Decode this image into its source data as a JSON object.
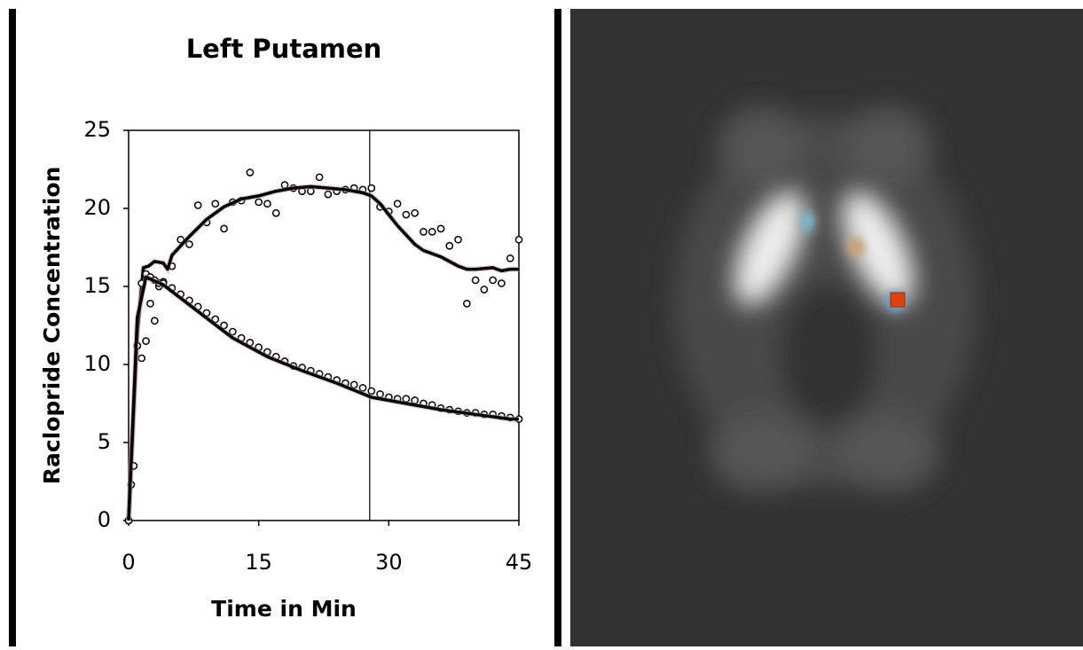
{
  "chart_data": {
    "type": "scatter",
    "title": "Left Putamen",
    "x_label": "Time in Min",
    "y_label": "Raclopride Concentration",
    "xlim": [
      0,
      45
    ],
    "ylim": [
      0,
      25
    ],
    "xticks": [
      0,
      15,
      30,
      45
    ],
    "yticks": [
      0,
      5,
      10,
      15,
      20,
      25
    ],
    "vline": 27.8,
    "series": [
      {
        "mode": "markers",
        "color": "#000000",
        "x": [
          0,
          0.5,
          1,
          1.5,
          2,
          2.5,
          3,
          3.5,
          4,
          5,
          6,
          7,
          8,
          9,
          10,
          11,
          12,
          13,
          14,
          15,
          16,
          17,
          18,
          19,
          20,
          21,
          22,
          23,
          24,
          25,
          26,
          27,
          28,
          29,
          30,
          31,
          32,
          33,
          34,
          35,
          36,
          37,
          38,
          39,
          40,
          41,
          42,
          43,
          44,
          45
        ],
        "values": [
          0,
          3.5,
          11.2,
          10.4,
          11.5,
          13.9,
          12.8,
          15,
          15.3,
          16.3,
          18,
          17.7,
          20.2,
          19.1,
          20.3,
          18.7,
          20.4,
          20.5,
          22.3,
          20.4,
          20.3,
          19.7,
          21.5,
          21.3,
          21.1,
          21.1,
          22,
          20.9,
          21.1,
          21.2,
          21.3,
          21.2,
          21.3,
          20.1,
          19.8,
          20.3,
          19.6,
          19.7,
          18.5,
          18.5,
          18.7,
          17.6,
          18,
          13.9,
          15.4,
          14.8,
          15.4,
          15.2,
          16.8,
          18
        ]
      },
      {
        "mode": "line",
        "color": "#000000",
        "x": [
          0,
          1,
          1.7,
          2.3,
          3,
          4,
          4.5,
          5,
          7,
          9,
          11,
          13,
          15,
          17,
          19,
          21,
          23,
          25,
          27,
          28,
          29,
          30,
          31,
          32,
          33,
          34,
          35,
          36,
          37,
          38,
          39,
          40,
          42,
          43,
          44,
          45
        ],
        "values": [
          0,
          12,
          16.2,
          16.3,
          16.6,
          16.5,
          16.1,
          17,
          18.2,
          19.3,
          20.1,
          20.6,
          20.8,
          21.1,
          21.3,
          21.4,
          21.3,
          21.2,
          21,
          20.8,
          20.3,
          19.6,
          18.9,
          18.3,
          17.7,
          17.3,
          17.1,
          16.9,
          16.6,
          16.3,
          16.1,
          16.1,
          16.2,
          16,
          16.1,
          16.1
        ]
      },
      {
        "mode": "markers",
        "color": "#000000",
        "x": [
          0,
          0.3,
          0.6,
          1,
          1.5,
          2,
          2.5,
          3,
          3.5,
          4,
          5,
          6,
          7,
          8,
          9,
          10,
          11,
          12,
          13,
          14,
          15,
          16,
          17,
          18,
          19,
          20,
          21,
          22,
          23,
          24,
          25,
          26,
          27,
          28,
          29,
          30,
          31,
          32,
          33,
          34,
          35,
          36,
          37,
          38,
          39,
          40,
          41,
          42,
          43,
          44,
          45
        ],
        "values": [
          0,
          2.3,
          3.5,
          11.2,
          15.2,
          15.8,
          15.6,
          15.4,
          15.2,
          15.2,
          14.9,
          14.5,
          14.1,
          13.7,
          13.3,
          12.9,
          12.5,
          12.1,
          11.7,
          11.4,
          11.1,
          10.8,
          10.5,
          10.2,
          9.9,
          9.8,
          9.6,
          9.4,
          9.2,
          9,
          8.8,
          8.7,
          8.5,
          8.3,
          8.1,
          7.9,
          7.8,
          7.8,
          7.7,
          7.5,
          7.4,
          7.2,
          7.1,
          7,
          6.9,
          6.9,
          6.8,
          6.8,
          6.7,
          6.6,
          6.5
        ]
      },
      {
        "mode": "line",
        "color": "#000000",
        "x": [
          0,
          1,
          2,
          4,
          8,
          12,
          16,
          20,
          24,
          28,
          32,
          36,
          40,
          44,
          45
        ],
        "values": [
          0,
          13,
          15.6,
          15.1,
          13.4,
          11.7,
          10.5,
          9.6,
          8.8,
          7.9,
          7.5,
          7.1,
          6.8,
          6.5,
          6.5
        ]
      }
    ]
  }
}
